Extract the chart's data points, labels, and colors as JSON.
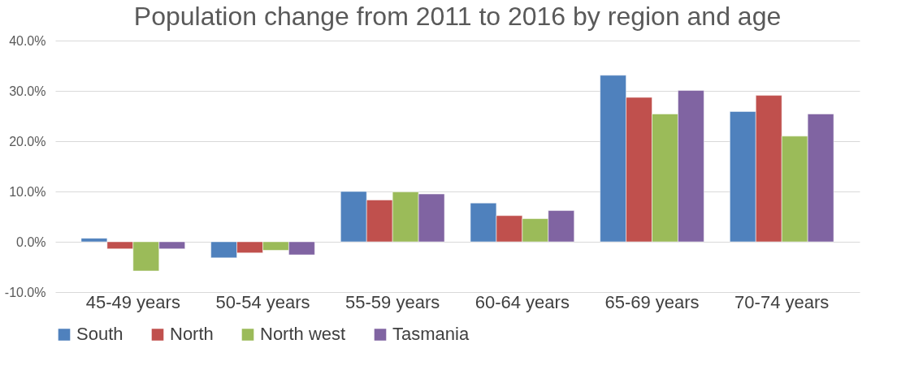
{
  "chart_data": {
    "type": "bar",
    "title": "Population change from 2011 to 2016 by region and age",
    "categories": [
      "45-49 years",
      "50-54 years",
      "55-59 years",
      "60-64 years",
      "65-69 years",
      "70-74 years"
    ],
    "series": [
      {
        "name": "South",
        "color": "#4f81bd",
        "values": [
          0.7,
          -3.2,
          10.0,
          7.7,
          33.1,
          25.9
        ]
      },
      {
        "name": "North",
        "color": "#c0504d",
        "values": [
          -1.4,
          -2.2,
          8.3,
          5.2,
          28.7,
          29.1
        ]
      },
      {
        "name": "North west",
        "color": "#9bbb59",
        "values": [
          -5.8,
          -1.7,
          9.9,
          4.6,
          25.4,
          21.0
        ]
      },
      {
        "name": "Tasmania",
        "color": "#8064a2",
        "values": [
          -1.4,
          -2.6,
          9.5,
          6.2,
          30.1,
          25.4
        ]
      }
    ],
    "ylim": [
      -10,
      40
    ],
    "yticks": [
      {
        "value": -10,
        "label": "-10.0%"
      },
      {
        "value": 0,
        "label": "0.0%"
      },
      {
        "value": 10,
        "label": "10.0%"
      },
      {
        "value": 20,
        "label": "20.0%"
      },
      {
        "value": 30,
        "label": "30.0%"
      },
      {
        "value": 40,
        "label": "40.0%"
      }
    ],
    "grid": "y",
    "legend": "bottom"
  }
}
